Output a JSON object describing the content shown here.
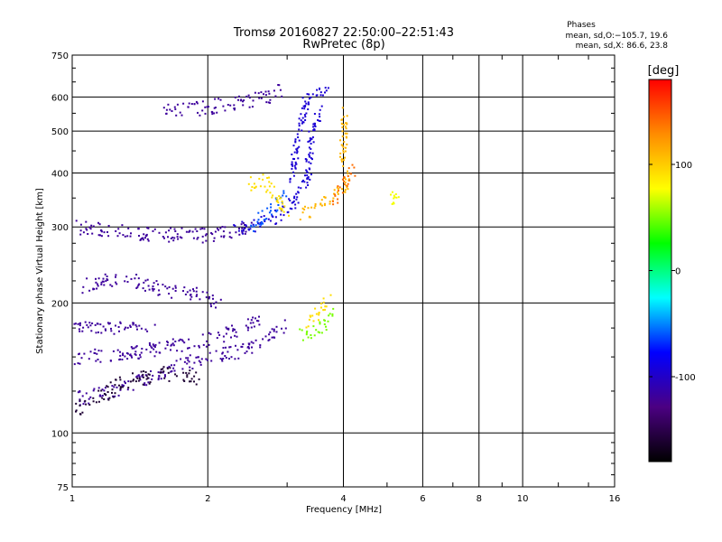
{
  "chart_data": {
    "type": "scatter",
    "title": "Tromsø 20160827 22:50:00–22:51:43",
    "subtitle": "RwPretec (8p)",
    "xlabel": "Frequency [MHz]",
    "ylabel": "Stationary phase Virtual Height [km]",
    "x_scale": "log",
    "y_scale": "log",
    "xlim": [
      1,
      16
    ],
    "ylim": [
      75,
      750
    ],
    "x_ticks": [
      1,
      2,
      4,
      6,
      8,
      10,
      16
    ],
    "y_ticks": [
      75,
      100,
      200,
      300,
      400,
      500,
      600,
      750
    ],
    "grid": true,
    "stats": {
      "header": "Phases",
      "line_o": "mean, sd,O:−105.7, 19.6",
      "line_x": "mean, sd,X:  86.6, 23.8"
    },
    "colorbar": {
      "label": "[deg]",
      "range": [
        -180,
        180
      ],
      "ticks": [
        100,
        0,
        -100
      ],
      "colors": [
        "#000000",
        "#4b0082",
        "#0000ff",
        "#00ffff",
        "#00ff00",
        "#ffff00",
        "#ff8c00",
        "#ff0000"
      ]
    },
    "series": [
      {
        "phase": -118,
        "segments": [
          {
            "x": [
              1.0,
              1.3,
              1.6,
              2.0,
              2.4,
              2.7,
              2.95
            ],
            "y": [
              120,
              128,
              140,
              150,
              157,
              165,
              178
            ]
          },
          {
            "x": [
              1.0,
              1.4,
              2.0,
              2.6
            ],
            "y": [
              150,
              155,
              165,
              182
            ]
          },
          {
            "x": [
              1.0,
              1.5
            ],
            "y": [
              178,
              176
            ]
          },
          {
            "x": [
              1.0,
              1.5,
              2.0,
              2.5
            ],
            "y": [
              300,
              290,
              288,
              298
            ]
          },
          {
            "x": [
              1.6,
              1.8,
              2.0,
              2.2,
              2.45,
              2.75,
              2.9
            ],
            "y": [
              570,
              565,
              568,
              580,
              590,
              605,
              625
            ]
          },
          {
            "x": [
              1.05,
              1.3,
              1.6,
              1.9,
              2.1
            ],
            "y": [
              220,
              230,
              215,
              210,
              200
            ]
          }
        ]
      },
      {
        "phase": -95,
        "segments": [
          {
            "x": [
              2.3,
              2.8,
              3.1,
              3.35
            ],
            "y": [
              298,
              315,
              345,
              400
            ]
          },
          {
            "x": [
              3.05,
              3.15,
              3.3,
              3.5,
              3.7
            ],
            "y": [
              380,
              480,
              590,
              620,
              640
            ]
          },
          {
            "x": [
              3.3,
              3.4,
              3.55
            ],
            "y": [
              380,
              500,
              560
            ]
          }
        ]
      },
      {
        "phase": -60,
        "segments": [
          {
            "x": [
              2.45,
              2.7,
              3.0
            ],
            "y": [
              300,
              325,
              360
            ]
          }
        ]
      },
      {
        "phase": 50,
        "segments": [
          {
            "x": [
              3.2,
              3.4,
              3.6,
              3.75
            ],
            "y": [
              168,
              172,
              178,
              190
            ]
          }
        ]
      },
      {
        "phase": 92,
        "segments": [
          {
            "x": [
              3.3,
              3.55,
              3.7
            ],
            "y": [
              180,
              195,
              205
            ]
          },
          {
            "x": [
              2.45,
              2.65,
              3.0
            ],
            "y": [
              380,
              390,
              320
            ]
          }
        ]
      },
      {
        "phase": 110,
        "segments": [
          {
            "x": [
              3.2,
              3.5,
              3.8,
              4.0,
              4.1
            ],
            "y": [
              320,
              335,
              355,
              375,
              400
            ]
          },
          {
            "x": [
              3.95,
              4.0,
              4.0
            ],
            "y": [
              420,
              500,
              560
            ]
          }
        ]
      },
      {
        "phase": 140,
        "segments": [
          {
            "x": [
              3.8,
              4.0,
              4.2
            ],
            "y": [
              350,
              380,
              410
            ]
          }
        ]
      },
      {
        "phase": 75,
        "segments": [
          {
            "x": [
              5.0,
              5.15,
              5.3
            ],
            "y": [
              350,
              352,
              356
            ]
          }
        ]
      },
      {
        "phase": -160,
        "segments": [
          {
            "x": [
              1.0,
              1.3,
              1.6,
              1.9
            ],
            "y": [
              112,
              132,
              138,
              135
            ]
          }
        ]
      }
    ]
  }
}
